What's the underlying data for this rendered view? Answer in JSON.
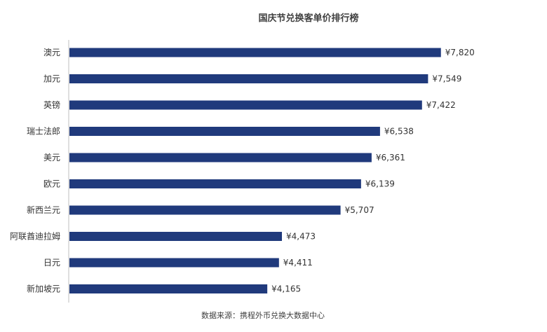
{
  "chart_data": {
    "type": "bar",
    "orientation": "horizontal",
    "title": "国庆节兑换客单价排行榜",
    "categories": [
      "澳元",
      "加元",
      "英镑",
      "瑞士法郎",
      "美元",
      "欧元",
      "新西兰元",
      "阿联酋迪拉姆",
      "日元",
      "新加坡元"
    ],
    "values": [
      7820,
      7549,
      7422,
      6538,
      6361,
      6139,
      5707,
      4473,
      4411,
      4165
    ],
    "value_labels": [
      "¥7,820",
      "¥7,549",
      "¥7,422",
      "¥6,538",
      "¥6,361",
      "¥6,139",
      "¥5,707",
      "¥4,473",
      "¥4,411",
      "¥4,165"
    ],
    "xlim": [
      0,
      9300
    ],
    "bar_color": "#203a7c",
    "axis_color": "#bfbfbf",
    "grid": false,
    "legend": "none",
    "source": "数据来源：携程外币兑换大数据中心"
  }
}
